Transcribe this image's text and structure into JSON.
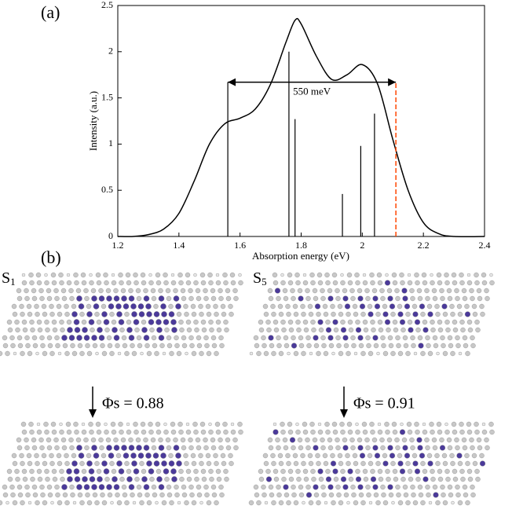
{
  "panel_labels": [
    "(a)",
    "(b)"
  ],
  "chart_data": {
    "type": "line",
    "xlabel": "Absorption energy (eV)",
    "ylabel": "Intensity (a.u.)",
    "xlim": [
      1.2,
      2.4
    ],
    "xticks": [
      1.2,
      1.4,
      1.6,
      1.8,
      2,
      2.2,
      2.4
    ],
    "ylim": [
      0,
      2.5
    ],
    "yticks": [
      0,
      0.5,
      1,
      1.5,
      2,
      2.5
    ],
    "x": [
      1.2,
      1.25,
      1.3,
      1.35,
      1.4,
      1.45,
      1.5,
      1.55,
      1.6,
      1.65,
      1.7,
      1.75,
      1.78,
      1.8,
      1.85,
      1.9,
      1.95,
      2.0,
      2.05,
      2.1,
      2.15,
      2.2,
      2.25,
      2.3,
      2.4
    ],
    "series": [
      {
        "color": "#000000",
        "values": [
          0,
          0,
          0.02,
          0.08,
          0.25,
          0.6,
          1.0,
          1.22,
          1.28,
          1.38,
          1.65,
          2.1,
          2.34,
          2.3,
          1.95,
          1.7,
          1.75,
          1.86,
          1.65,
          1.05,
          0.5,
          0.15,
          0.03,
          0,
          0
        ]
      }
    ],
    "sticks": {
      "color": "#000000",
      "x": [
        1.56,
        1.76,
        1.78,
        1.935,
        1.995,
        2.04
      ],
      "values": [
        1.67,
        2.0,
        1.27,
        0.46,
        0.98,
        1.33
      ]
    },
    "annotation": {
      "text": "550 meV",
      "x": [
        1.56,
        2.11
      ],
      "y": 1.67,
      "marker_color": "#ff4500"
    }
  },
  "molecules": [
    {
      "state": "S",
      "subscript": "1",
      "efficiency": "Φs = 0.88"
    },
    {
      "state": "S",
      "subscript": "5",
      "efficiency": "Φs = 0.91"
    }
  ]
}
